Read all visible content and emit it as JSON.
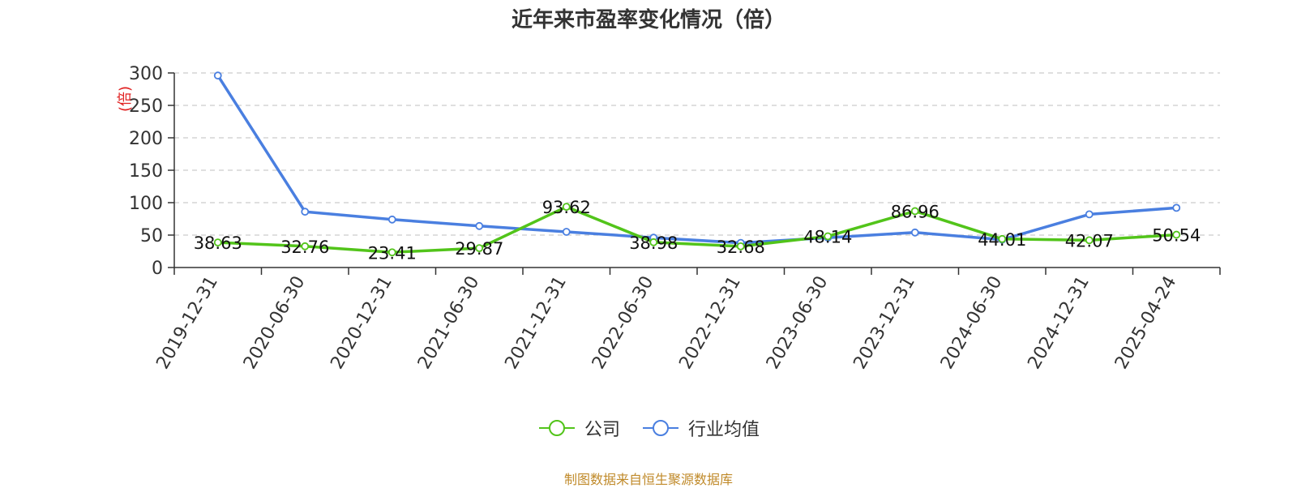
{
  "chart_data": {
    "type": "line",
    "title": "近年来市盈率变化情况（倍）",
    "ylabel": "(倍)",
    "ylim": [
      0,
      300
    ],
    "yticks": [
      0,
      50,
      100,
      150,
      200,
      250,
      300
    ],
    "categories": [
      "2019-12-31",
      "2020-06-30",
      "2020-12-31",
      "2021-06-30",
      "2021-12-31",
      "2022-06-30",
      "2022-12-31",
      "2023-06-30",
      "2023-12-31",
      "2024-06-30",
      "2024-12-31",
      "2025-04-24"
    ],
    "series": [
      {
        "name": "公司",
        "color": "#52c41a",
        "values": [
          38.63,
          32.76,
          23.41,
          29.87,
          93.62,
          38.98,
          32.68,
          48.14,
          86.96,
          44.01,
          42.07,
          50.54
        ],
        "labels": [
          "38.63",
          "32.76",
          "23.41",
          "29.87",
          "93.62",
          "38.98",
          "32.68",
          "48.14",
          "86.96",
          "44.01",
          "42.07",
          "50.54"
        ]
      },
      {
        "name": "行业均值",
        "color": "#4a7fe0",
        "values": [
          296,
          86,
          74,
          64,
          55,
          46,
          38,
          46,
          54,
          43,
          82,
          92
        ]
      }
    ],
    "grid": true,
    "legend": "bottom"
  },
  "footer": "制图数据来自恒生聚源数据库"
}
